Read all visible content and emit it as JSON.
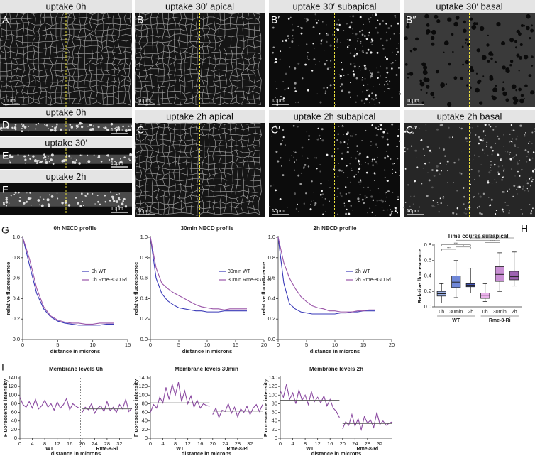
{
  "panels": [
    {
      "letter": "A",
      "title": "uptake 0h",
      "scale": "10μm"
    },
    {
      "letter": "B",
      "title": "uptake 30′ apical",
      "scale": "10μm"
    },
    {
      "letter": "B′",
      "title": "uptake 30′ subapical",
      "scale": "10μm"
    },
    {
      "letter": "B″",
      "title": "uptake 30′ basal",
      "scale": "10μm"
    },
    {
      "letter": "C",
      "title": "uptake 2h apical",
      "scale": "10μm"
    },
    {
      "letter": "C′",
      "title": "uptake 2h subapical",
      "scale": "10μm"
    },
    {
      "letter": "C″",
      "title": "uptake 2h basal",
      "scale": "10μm"
    },
    {
      "letter": "D",
      "title": "uptake 0h",
      "scale": "10μm"
    },
    {
      "letter": "E",
      "title": "uptake 30′",
      "scale": "10μm"
    },
    {
      "letter": "F",
      "title": "uptake 2h",
      "scale": "10μm"
    }
  ],
  "figure_labels": [
    "G",
    "H",
    "I"
  ],
  "chart_data": [
    {
      "type": "line",
      "title": "0h NECD profile",
      "x_label": "distance in microns",
      "y_label": "relative fluorescence",
      "x": [
        0,
        1,
        2,
        3,
        4,
        5,
        6,
        7,
        8,
        9,
        10,
        11,
        12,
        13
      ],
      "xlim": [
        0,
        15
      ],
      "xticks": [
        0,
        5,
        10,
        15
      ],
      "ylim": [
        0,
        1.0
      ],
      "yticks": [
        {
          "value": 0,
          "label": "0.0"
        },
        0.2,
        0.4,
        0.6,
        0.8,
        {
          "value": 1.0,
          "label": "1.0"
        }
      ],
      "series": [
        {
          "name": "0h WT",
          "color": "#3a3ab8",
          "values": [
            1.0,
            0.72,
            0.45,
            0.3,
            0.22,
            0.18,
            0.16,
            0.15,
            0.14,
            0.14,
            0.14,
            0.14,
            0.15,
            0.15
          ]
        },
        {
          "name": "0h Rme-8GD Ri",
          "color": "#9a55a8",
          "values": [
            1.0,
            0.78,
            0.5,
            0.32,
            0.23,
            0.19,
            0.17,
            0.16,
            0.16,
            0.15,
            0.15,
            0.16,
            0.16,
            0.16
          ]
        }
      ]
    },
    {
      "type": "line",
      "title": "30min NECD profile",
      "x_label": "distance in microns",
      "y_label": "relative fluorescence",
      "x": [
        0,
        1,
        2,
        3,
        4,
        5,
        6,
        7,
        8,
        9,
        10,
        11,
        12,
        13,
        14,
        15,
        16,
        17
      ],
      "xlim": [
        0,
        20
      ],
      "xticks": [
        0,
        5,
        10,
        15,
        20
      ],
      "ylim": [
        0,
        1.0
      ],
      "yticks": [
        {
          "value": 0,
          "label": "0.0"
        },
        0.2,
        0.4,
        0.6,
        0.8,
        {
          "value": 1.0,
          "label": "1.0"
        }
      ],
      "series": [
        {
          "name": "30min WT",
          "color": "#3a3ab8",
          "values": [
            1.0,
            0.6,
            0.45,
            0.38,
            0.34,
            0.31,
            0.3,
            0.29,
            0.28,
            0.28,
            0.27,
            0.27,
            0.27,
            0.28,
            0.28,
            0.28,
            0.28,
            0.28
          ]
        },
        {
          "name": "30min Rme-8GD Ri",
          "color": "#9a55a8",
          "values": [
            1.0,
            0.7,
            0.55,
            0.5,
            0.46,
            0.43,
            0.4,
            0.37,
            0.34,
            0.32,
            0.31,
            0.3,
            0.3,
            0.29,
            0.3,
            0.3,
            0.3,
            0.3
          ]
        }
      ]
    },
    {
      "type": "line",
      "title": "2h NECD profile",
      "x_label": "distance in microns",
      "y_label": "relative fluorescence",
      "x": [
        0,
        1,
        2,
        3,
        4,
        5,
        6,
        7,
        8,
        9,
        10,
        11,
        12,
        13,
        14,
        15,
        16,
        17
      ],
      "xlim": [
        0,
        20
      ],
      "xticks": [
        0,
        5,
        10,
        15,
        20
      ],
      "ylim": [
        0,
        1.0
      ],
      "yticks": [
        {
          "value": 0,
          "label": "0.0"
        },
        0.2,
        0.4,
        0.6,
        0.8,
        {
          "value": 1.0,
          "label": "1.0"
        }
      ],
      "series": [
        {
          "name": "2h WT",
          "color": "#3a3ab8",
          "values": [
            1.0,
            0.55,
            0.35,
            0.3,
            0.27,
            0.26,
            0.25,
            0.25,
            0.25,
            0.25,
            0.25,
            0.26,
            0.26,
            0.27,
            0.27,
            0.28,
            0.28,
            0.28
          ]
        },
        {
          "name": "2h Rme-8GD Ri",
          "color": "#9a55a8",
          "values": [
            1.0,
            0.75,
            0.6,
            0.5,
            0.42,
            0.37,
            0.33,
            0.31,
            0.3,
            0.28,
            0.28,
            0.27,
            0.27,
            0.27,
            0.28,
            0.28,
            0.29,
            0.29
          ]
        }
      ]
    },
    {
      "type": "box",
      "title": "Time course subapical",
      "y_label": "Relative fluorescence",
      "categories": [
        "0h",
        "30min",
        "2h",
        "0h",
        "30min",
        "2h"
      ],
      "groups": [
        "WT",
        "Rme-8-Ri"
      ],
      "ylim": [
        0,
        0.8
      ],
      "yticks": [
        {
          "value": 0,
          "label": "0.0"
        },
        0.2,
        0.4,
        0.6,
        0.8
      ],
      "boxes": [
        {
          "min": 0.05,
          "q1": 0.14,
          "median": 0.17,
          "q3": 0.2,
          "max": 0.3,
          "color": "#9fb4ea"
        },
        {
          "min": 0.12,
          "q1": 0.25,
          "median": 0.32,
          "q3": 0.4,
          "max": 0.6,
          "color": "#7088d8"
        },
        {
          "min": 0.18,
          "q1": 0.26,
          "median": 0.28,
          "q3": 0.3,
          "max": 0.5,
          "color": "#4455b8"
        },
        {
          "min": 0.07,
          "q1": 0.11,
          "median": 0.15,
          "q3": 0.18,
          "max": 0.3,
          "color": "#eab0ea"
        },
        {
          "min": 0.2,
          "q1": 0.33,
          "median": 0.42,
          "q3": 0.52,
          "max": 0.7,
          "color": "#c98fd4"
        },
        {
          "min": 0.27,
          "q1": 0.35,
          "median": 0.39,
          "q3": 0.46,
          "max": 0.71,
          "color": "#9e62b2"
        }
      ],
      "significance": [
        {
          "from": 0,
          "to": 1,
          "label": "***"
        },
        {
          "from": 1,
          "to": 2,
          "label": "*"
        },
        {
          "from": 0,
          "to": 2,
          "label": "****"
        },
        {
          "from": 3,
          "to": 4,
          "label": "****"
        },
        {
          "from": 1,
          "to": 4,
          "label": "****"
        },
        {
          "from": 2,
          "to": 5,
          "label": "****"
        }
      ]
    },
    {
      "type": "trace",
      "title": "Membrane levels 0h",
      "x_label": "distance in microns",
      "y_label": "Fluorescence intensity",
      "xlim": [
        0,
        36
      ],
      "xticks": [
        0,
        4,
        8,
        12,
        16,
        20,
        24,
        28,
        32
      ],
      "ylim": [
        0,
        140
      ],
      "yticks": [
        0,
        20,
        40,
        60,
        80,
        100,
        120,
        140
      ],
      "series": [
        {
          "name": "WT",
          "color": "#8a48a0",
          "mean": 75,
          "x": [
            0,
            1,
            2,
            3,
            4,
            5,
            6,
            7,
            8,
            9,
            10,
            11,
            12,
            13,
            14,
            15,
            16,
            17,
            18,
            19
          ],
          "values": [
            95,
            78,
            72,
            85,
            70,
            90,
            68,
            75,
            88,
            72,
            80,
            65,
            84,
            70,
            78,
            92,
            66,
            80,
            74,
            70
          ]
        },
        {
          "name": "Rme-8-Ri",
          "color": "#8a48a0",
          "mean": 68,
          "x": [
            20,
            21,
            22,
            23,
            24,
            25,
            26,
            27,
            28,
            29,
            30,
            31,
            32,
            33,
            34,
            35,
            36
          ],
          "values": [
            60,
            72,
            66,
            80,
            58,
            70,
            75,
            62,
            85,
            64,
            72,
            60,
            78,
            68,
            90,
            62,
            70
          ]
        }
      ]
    },
    {
      "type": "trace",
      "title": "Membrane levels 30min",
      "x_label": "distance in microns",
      "y_label": "Fluorescence intensity",
      "xlim": [
        0,
        36
      ],
      "xticks": [
        0,
        4,
        8,
        12,
        16,
        20,
        24,
        28,
        32
      ],
      "ylim": [
        0,
        140
      ],
      "yticks": [
        0,
        20,
        40,
        60,
        80,
        100,
        120,
        140
      ],
      "series": [
        {
          "name": "WT",
          "color": "#8a48a0",
          "mean": 82,
          "x": [
            0,
            1,
            2,
            3,
            4,
            5,
            6,
            7,
            8,
            9,
            10,
            11,
            12,
            13,
            14,
            15,
            16,
            17,
            18,
            19
          ],
          "values": [
            60,
            78,
            70,
            95,
            82,
            118,
            90,
            125,
            100,
            130,
            85,
            110,
            80,
            98,
            72,
            88,
            70,
            80,
            76,
            74
          ]
        },
        {
          "name": "Rme-8-Ri",
          "color": "#8a48a0",
          "mean": 63,
          "x": [
            20,
            21,
            22,
            23,
            24,
            25,
            26,
            27,
            28,
            29,
            30,
            31,
            32,
            33,
            34,
            35,
            36
          ],
          "values": [
            55,
            70,
            48,
            65,
            62,
            80,
            58,
            72,
            50,
            68,
            60,
            74,
            55,
            70,
            78,
            62,
            78
          ]
        }
      ]
    },
    {
      "type": "trace",
      "title": "Membrane levels 2h",
      "x_label": "distance in microns",
      "y_label": "Fluorescence intensity",
      "xlim": [
        0,
        36
      ],
      "xticks": [
        0,
        4,
        8,
        12,
        16,
        20,
        24,
        28,
        32
      ],
      "ylim": [
        0,
        140
      ],
      "yticks": [
        0,
        20,
        40,
        60,
        80,
        100,
        120,
        140
      ],
      "series": [
        {
          "name": "WT",
          "color": "#8a48a0",
          "mean": 88,
          "x": [
            0,
            1,
            2,
            3,
            4,
            5,
            6,
            7,
            8,
            9,
            10,
            11,
            12,
            13,
            14,
            15,
            16,
            17,
            18,
            19
          ],
          "values": [
            110,
            95,
            125,
            90,
            105,
            80,
            112,
            88,
            100,
            78,
            108,
            85,
            95,
            82,
            98,
            75,
            90,
            70,
            62,
            48
          ]
        },
        {
          "name": "Rme-8-Ri",
          "color": "#8a48a0",
          "mean": 34,
          "x": [
            20,
            21,
            22,
            23,
            24,
            25,
            26,
            27,
            28,
            29,
            30,
            31,
            32,
            33,
            34,
            35,
            36
          ],
          "values": [
            22,
            38,
            30,
            55,
            28,
            45,
            20,
            50,
            35,
            42,
            25,
            60,
            32,
            40,
            30,
            35,
            38
          ]
        }
      ]
    }
  ]
}
